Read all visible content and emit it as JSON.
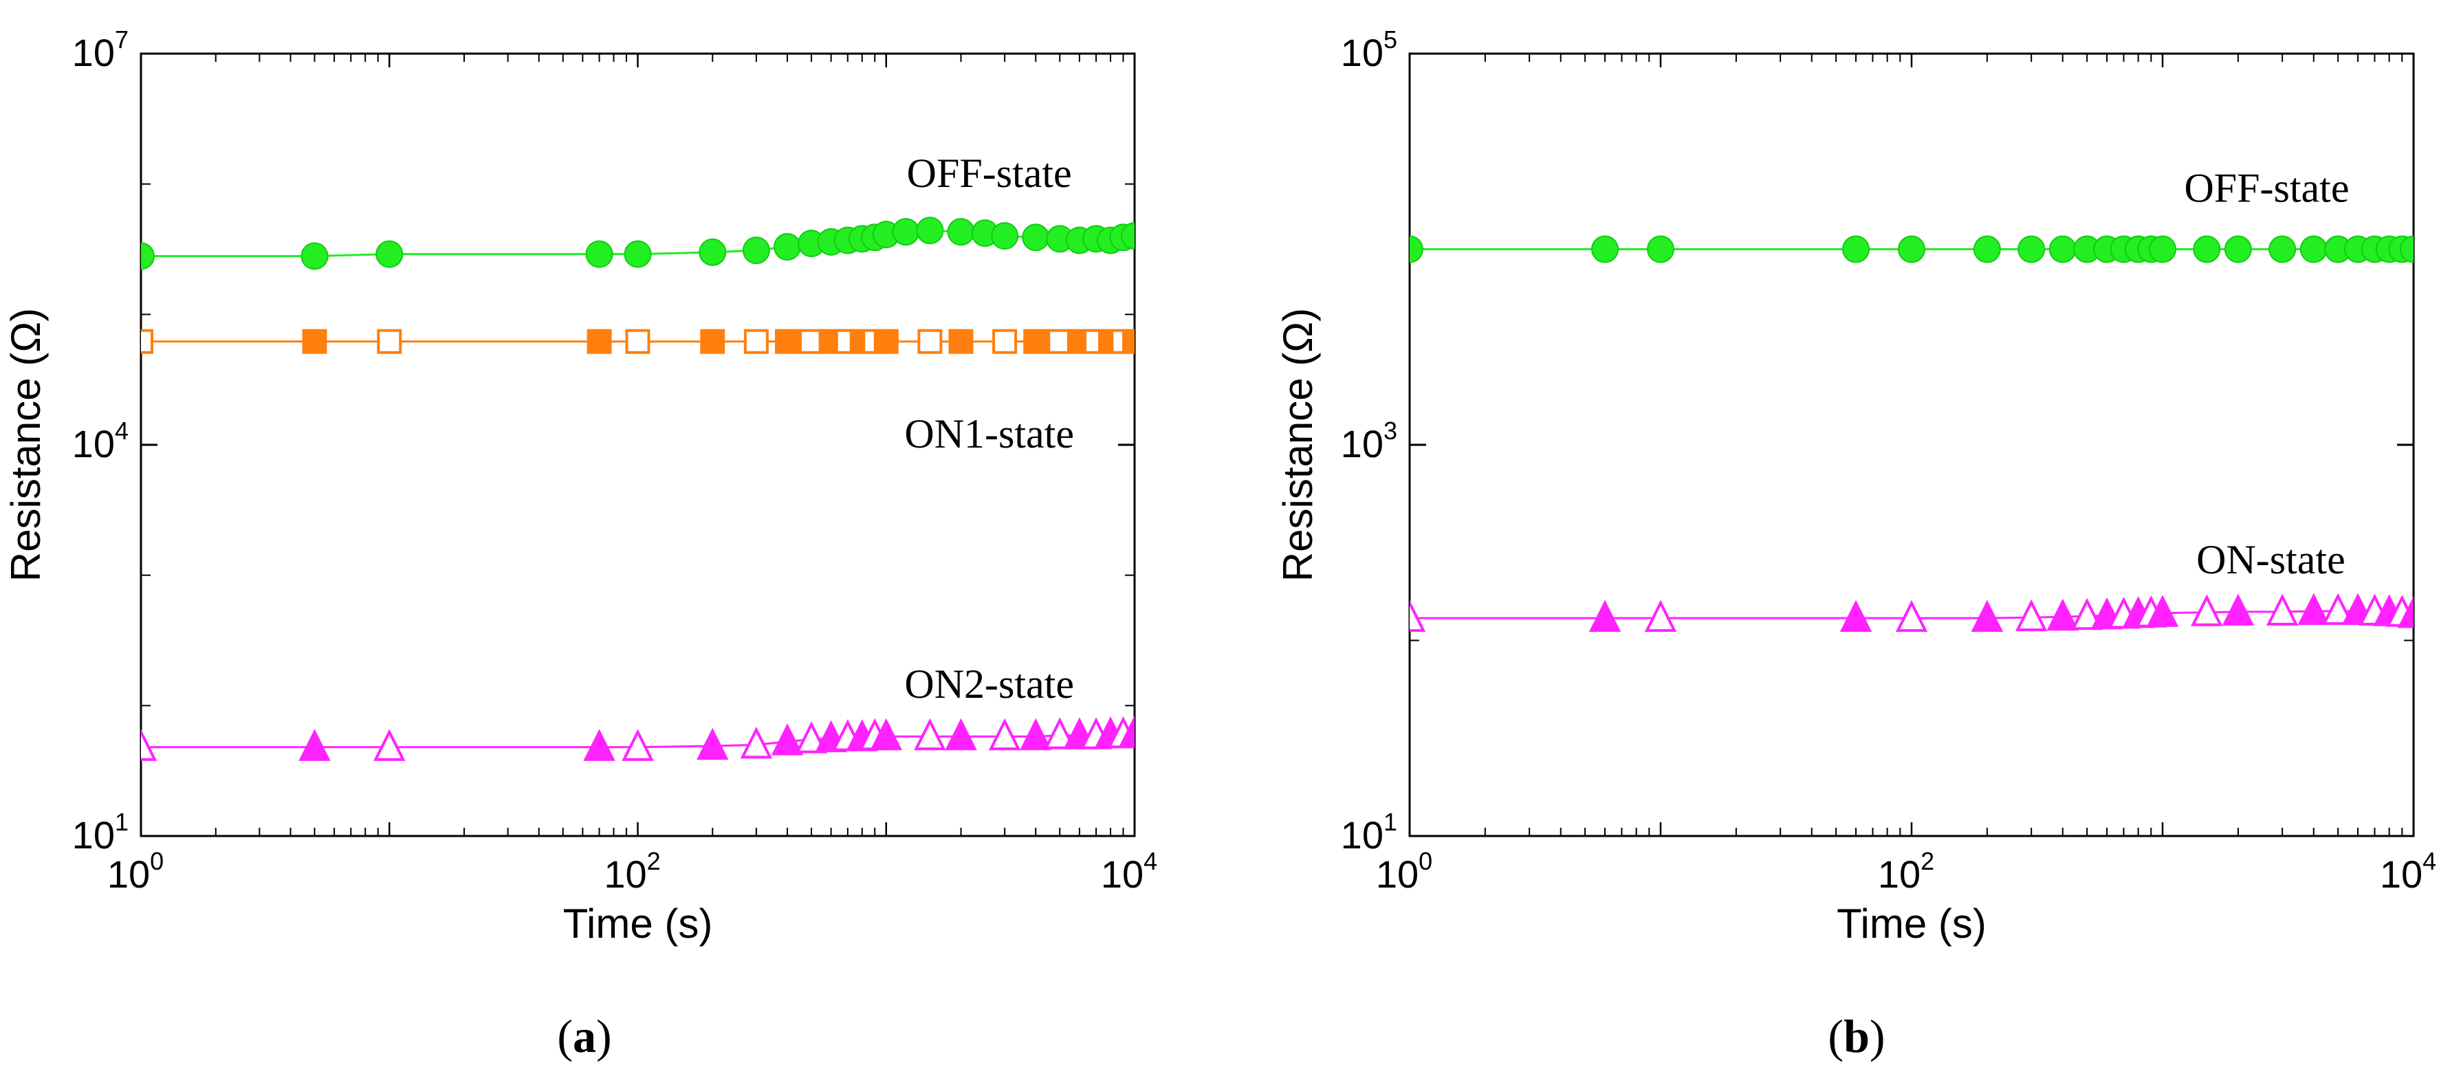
{
  "chart_data": [
    {
      "type": "scatter",
      "panel_label": "a",
      "xlabel": "Time (s)",
      "ylabel": "Resistance (Ω)",
      "x_scale": "log",
      "y_scale": "log",
      "xlim": [
        1,
        10000
      ],
      "ylim": [
        10,
        10000000
      ],
      "x_ticks": [
        {
          "value": 1,
          "base": "10",
          "exp": "0"
        },
        {
          "value": 100,
          "base": "10",
          "exp": "2"
        },
        {
          "value": 10000,
          "base": "10",
          "exp": "4"
        }
      ],
      "y_ticks": [
        {
          "value": 10,
          "base": "10",
          "exp": "1"
        },
        {
          "value": 10000,
          "base": "10",
          "exp": "4"
        },
        {
          "value": 10000000,
          "base": "10",
          "exp": "7"
        }
      ],
      "series": [
        {
          "name": "OFF-state",
          "marker": "circle",
          "color": "#22ee22",
          "x": [
            1,
            5,
            10,
            70,
            100,
            200,
            300,
            400,
            500,
            600,
            700,
            800,
            900,
            1000,
            1200,
            1500,
            2000,
            2500,
            3000,
            4000,
            5000,
            6000,
            7000,
            8000,
            9000,
            10000
          ],
          "y": [
            280000,
            280000,
            290000,
            290000,
            290000,
            300000,
            310000,
            330000,
            350000,
            360000,
            370000,
            380000,
            390000,
            410000,
            430000,
            440000,
            430000,
            420000,
            400000,
            390000,
            380000,
            370000,
            380000,
            370000,
            390000,
            400000
          ]
        },
        {
          "name": "ON1-state",
          "marker": "square",
          "color": "#ff7f0e",
          "x": [
            1,
            5,
            10,
            70,
            100,
            200,
            300,
            400,
            500,
            600,
            700,
            800,
            900,
            1000,
            1500,
            2000,
            3000,
            4000,
            5000,
            6000,
            7000,
            8000,
            9000,
            10000
          ],
          "y": [
            62000,
            62000,
            62000,
            62000,
            62000,
            62000,
            62000,
            62000,
            62000,
            62000,
            62000,
            62000,
            62000,
            62000,
            62000,
            62000,
            62000,
            62000,
            62000,
            62000,
            62000,
            62000,
            62000,
            62000
          ]
        },
        {
          "name": "ON2-state",
          "marker": "triangle",
          "color": "#ff22ff",
          "x": [
            1,
            5,
            10,
            70,
            100,
            200,
            300,
            400,
            500,
            600,
            700,
            800,
            900,
            1000,
            1500,
            2000,
            3000,
            4000,
            5000,
            6000,
            7000,
            8000,
            9000,
            10000
          ],
          "y": [
            48,
            48,
            48,
            48,
            48,
            49,
            50,
            53,
            55,
            56,
            57,
            57,
            58,
            58,
            58,
            58,
            58,
            58,
            59,
            59,
            59,
            60,
            60,
            61
          ]
        }
      ],
      "annotations": [
        {
          "text": "OFF-state",
          "x": 2600,
          "y": 950000
        },
        {
          "text": "ON1-state",
          "x": 2600,
          "y": 9500
        },
        {
          "text": "ON2-state",
          "x": 2600,
          "y": 115
        }
      ]
    },
    {
      "type": "scatter",
      "panel_label": "b",
      "xlabel": "Time (s)",
      "ylabel": "Resistance (Ω)",
      "x_scale": "log",
      "y_scale": "log",
      "xlim": [
        1,
        10000
      ],
      "ylim": [
        10,
        100000
      ],
      "x_ticks": [
        {
          "value": 1,
          "base": "10",
          "exp": "0"
        },
        {
          "value": 100,
          "base": "10",
          "exp": "2"
        },
        {
          "value": 10000,
          "base": "10",
          "exp": "4"
        }
      ],
      "y_ticks": [
        {
          "value": 10,
          "base": "10",
          "exp": "1"
        },
        {
          "value": 1000,
          "base": "10",
          "exp": "3"
        },
        {
          "value": 100000,
          "base": "10",
          "exp": "5"
        }
      ],
      "series": [
        {
          "name": "OFF-state",
          "marker": "circle",
          "color": "#22ee22",
          "x": [
            1,
            6,
            10,
            60,
            100,
            200,
            300,
            400,
            500,
            600,
            700,
            800,
            900,
            1000,
            1500,
            2000,
            3000,
            4000,
            5000,
            6000,
            7000,
            8000,
            9000,
            10000
          ],
          "y": [
            10000,
            10000,
            10000,
            10000,
            10000,
            10000,
            10000,
            10000,
            10000,
            10000,
            10000,
            10000,
            10000,
            10000,
            10000,
            10000,
            10000,
            10000,
            10000,
            10000,
            10000,
            10000,
            10000,
            10000
          ]
        },
        {
          "name": "ON-state",
          "marker": "triangle",
          "color": "#ff22ff",
          "x": [
            1,
            6,
            10,
            60,
            100,
            200,
            300,
            400,
            500,
            600,
            700,
            800,
            900,
            1000,
            1500,
            2000,
            3000,
            4000,
            5000,
            6000,
            7000,
            8000,
            9000,
            10000
          ],
          "y": [
            130,
            130,
            130,
            130,
            130,
            130,
            131,
            132,
            133,
            134,
            135,
            136,
            137,
            138,
            139,
            140,
            140,
            141,
            141,
            141,
            140,
            139,
            138,
            136
          ]
        }
      ],
      "annotations": [
        {
          "text": "OFF-state",
          "x": 2600,
          "y": 17500
        },
        {
          "text": "ON-state",
          "x": 2700,
          "y": 220
        }
      ]
    }
  ]
}
